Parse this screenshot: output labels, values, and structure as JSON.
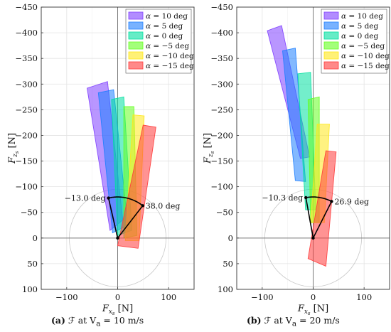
{
  "chart_data": [
    {
      "type": "scatter",
      "panel_label": "(a)",
      "caption": "ℱ at V_a = 10 m/s",
      "xlabel": "F_xs [N]",
      "ylabel": "F_zs [N]",
      "xlim": [
        -150,
        150
      ],
      "ylim": [
        100,
        -450
      ],
      "y_axis_inverted": true,
      "xticks": [
        -100,
        0,
        100
      ],
      "yticks": [
        -450,
        -400,
        -350,
        -300,
        -250,
        -200,
        -150,
        -100,
        -50,
        0,
        50,
        100
      ],
      "grid": true,
      "legend_position": "top-right",
      "reference_circle_radius": 95,
      "series": [
        {
          "name": "α = 10 deg",
          "color": "#7f3fff",
          "polygon": [
            [
              -60,
              -292
            ],
            [
              -20,
              -305
            ],
            [
              10,
              -35
            ],
            [
              -15,
              -15
            ]
          ]
        },
        {
          "name": "α = 5 deg",
          "color": "#1e7fff",
          "polygon": [
            [
              -38,
              -283
            ],
            [
              -8,
              -289
            ],
            [
              20,
              -25
            ],
            [
              -10,
              -10
            ]
          ]
        },
        {
          "name": "α = 0 deg",
          "color": "#00e0a0",
          "polygon": [
            [
              -12,
              -270
            ],
            [
              12,
              -275
            ],
            [
              28,
              -15
            ],
            [
              0,
              -5
            ]
          ]
        },
        {
          "name": "α = −5 deg",
          "color": "#66ff22",
          "polygon": [
            [
              12,
              -256
            ],
            [
              32,
              -256
            ],
            [
              38,
              -5
            ],
            [
              12,
              0
            ]
          ]
        },
        {
          "name": "α = −10 deg",
          "color": "#ffe81a",
          "polygon": [
            [
              30,
              -240
            ],
            [
              52,
              -238
            ],
            [
              42,
              5
            ],
            [
              15,
              5
            ]
          ]
        },
        {
          "name": "α = −15 deg",
          "color": "#ff3a3a",
          "polygon": [
            [
              50,
              -220
            ],
            [
              75,
              -216
            ],
            [
              40,
              20
            ],
            [
              0,
              15
            ]
          ]
        }
      ],
      "annotations": [
        {
          "text": "−13.0 deg",
          "angle_deg": -13.0
        },
        {
          "text": "38.0 deg",
          "angle_deg": 38.0
        }
      ]
    },
    {
      "type": "scatter",
      "panel_label": "(b)",
      "caption": "ℱ at V_a = 20 m/s",
      "xlabel": "F_xs [N]",
      "ylabel": "F_zs [N]",
      "xlim": [
        -150,
        150
      ],
      "ylim": [
        100,
        -450
      ],
      "y_axis_inverted": true,
      "xticks": [
        -100,
        0,
        100
      ],
      "yticks": [
        -450,
        -400,
        -350,
        -300,
        -250,
        -200,
        -150,
        -100,
        -50,
        0,
        50,
        100
      ],
      "grid": true,
      "legend_position": "top-right",
      "reference_circle_radius": 95,
      "series": [
        {
          "name": "α = 10 deg",
          "color": "#7f3fff",
          "polygon": [
            [
              -90,
              -404
            ],
            [
              -62,
              -414
            ],
            [
              -7,
              -158
            ],
            [
              -25,
              -155
            ]
          ]
        },
        {
          "name": "α = 5 deg",
          "color": "#1e7fff",
          "polygon": [
            [
              -60,
              -365
            ],
            [
              -35,
              -370
            ],
            [
              -15,
              -110
            ],
            [
              -35,
              -112
            ]
          ]
        },
        {
          "name": "α = 0 deg",
          "color": "#00e0a0",
          "polygon": [
            [
              -30,
              -320
            ],
            [
              -5,
              -323
            ],
            [
              5,
              -55
            ],
            [
              -15,
              -55
            ]
          ]
        },
        {
          "name": "α = −5 deg",
          "color": "#66ff22",
          "polygon": [
            [
              -10,
              -270
            ],
            [
              12,
              -275
            ],
            [
              12,
              -30
            ],
            [
              -5,
              -30
            ]
          ]
        },
        {
          "name": "α = −10 deg",
          "color": "#ffe81a",
          "polygon": [
            [
              8,
              -222
            ],
            [
              32,
              -222
            ],
            [
              22,
              -30
            ],
            [
              -5,
              -30
            ]
          ]
        },
        {
          "name": "α = −15 deg",
          "color": "#ff3a3a",
          "polygon": [
            [
              25,
              -170
            ],
            [
              45,
              -168
            ],
            [
              25,
              55
            ],
            [
              -10,
              40
            ]
          ]
        }
      ],
      "annotations": [
        {
          "text": "−10.3 deg",
          "angle_deg": -10.3
        },
        {
          "text": "26.9 deg",
          "angle_deg": 26.9
        }
      ]
    }
  ],
  "captions": [
    {
      "label": "(a)",
      "pre": " ℱ at V",
      "sub": "a",
      "post": " = 10 m/s"
    },
    {
      "label": "(b)",
      "pre": " ℱ at V",
      "sub": "a",
      "post": " = 20 m/s"
    }
  ]
}
